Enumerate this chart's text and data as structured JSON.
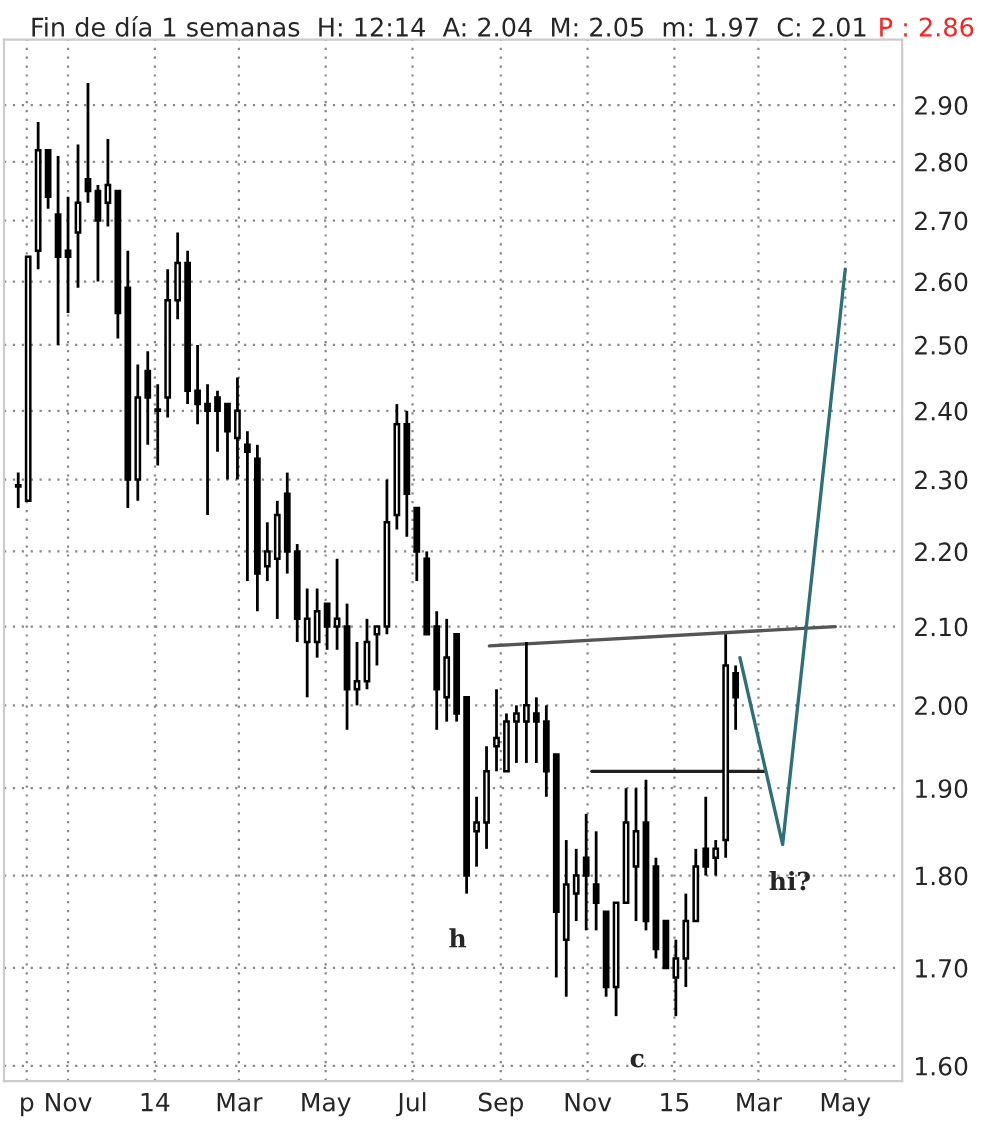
{
  "chart_data": {
    "type": "candlestick",
    "title": "Fin de día 1 semanas  H: 12:14  A: 2.04  M: 2.05  m: 1.97  C: 2.01",
    "subtitle": "P : 2.86",
    "x": [
      "2013-09-27",
      "2013-10-04",
      "2013-10-11",
      "2013-10-18",
      "2013-10-25",
      "2013-11-01",
      "2013-11-08",
      "2013-11-15",
      "2013-11-22",
      "2013-11-29",
      "2013-12-06",
      "2013-12-13",
      "2013-12-20",
      "2013-12-27",
      "2014-01-03",
      "2014-01-10",
      "2014-01-17",
      "2014-01-24",
      "2014-01-31",
      "2014-02-07",
      "2014-02-14",
      "2014-02-21",
      "2014-02-28",
      "2014-03-07",
      "2014-03-14",
      "2014-03-21",
      "2014-03-28",
      "2014-04-04",
      "2014-04-11",
      "2014-04-18",
      "2014-04-25",
      "2014-05-02",
      "2014-05-09",
      "2014-05-16",
      "2014-05-23",
      "2014-05-30",
      "2014-06-06",
      "2014-06-13",
      "2014-06-20",
      "2014-06-27",
      "2014-07-04",
      "2014-07-11",
      "2014-07-18",
      "2014-07-25",
      "2014-08-01",
      "2014-08-08",
      "2014-08-15",
      "2014-08-22",
      "2014-08-29",
      "2014-09-05",
      "2014-09-12",
      "2014-09-19",
      "2014-09-26",
      "2014-10-03",
      "2014-10-10",
      "2014-10-17",
      "2014-10-24",
      "2014-10-31",
      "2014-11-07",
      "2014-11-14",
      "2014-11-21",
      "2014-11-28",
      "2014-12-05",
      "2014-12-12",
      "2014-12-19",
      "2014-12-26",
      "2015-01-02",
      "2015-01-09",
      "2015-01-16",
      "2015-01-23",
      "2015-01-30",
      "2015-02-06",
      "2015-02-13"
    ],
    "ohlc": [
      [
        2.29,
        2.31,
        2.26,
        2.29
      ],
      [
        2.27,
        2.64,
        2.27,
        2.64
      ],
      [
        2.65,
        2.87,
        2.62,
        2.82
      ],
      [
        2.82,
        2.82,
        2.72,
        2.74
      ],
      [
        2.71,
        2.81,
        2.5,
        2.64
      ],
      [
        2.65,
        2.74,
        2.55,
        2.64
      ],
      [
        2.68,
        2.83,
        2.59,
        2.73
      ],
      [
        2.77,
        2.94,
        2.73,
        2.75
      ],
      [
        2.75,
        2.76,
        2.6,
        2.7
      ],
      [
        2.73,
        2.84,
        2.69,
        2.76
      ],
      [
        2.75,
        2.75,
        2.51,
        2.55
      ],
      [
        2.59,
        2.65,
        2.26,
        2.3
      ],
      [
        2.3,
        2.47,
        2.27,
        2.42
      ],
      [
        2.46,
        2.49,
        2.35,
        2.42
      ],
      [
        2.4,
        2.44,
        2.32,
        2.4
      ],
      [
        2.42,
        2.62,
        2.39,
        2.57
      ],
      [
        2.57,
        2.68,
        2.54,
        2.63
      ],
      [
        2.63,
        2.65,
        2.41,
        2.43
      ],
      [
        2.43,
        2.5,
        2.38,
        2.41
      ],
      [
        2.41,
        2.44,
        2.25,
        2.4
      ],
      [
        2.42,
        2.43,
        2.34,
        2.4
      ],
      [
        2.41,
        2.41,
        2.3,
        2.37
      ],
      [
        2.36,
        2.45,
        2.3,
        2.4
      ],
      [
        2.35,
        2.37,
        2.16,
        2.34
      ],
      [
        2.33,
        2.35,
        2.12,
        2.17
      ],
      [
        2.18,
        2.24,
        2.16,
        2.2
      ],
      [
        2.19,
        2.27,
        2.11,
        2.25
      ],
      [
        2.28,
        2.31,
        2.17,
        2.2
      ],
      [
        2.2,
        2.21,
        2.08,
        2.11
      ],
      [
        2.08,
        2.15,
        2.01,
        2.11
      ],
      [
        2.08,
        2.15,
        2.06,
        2.12
      ],
      [
        2.13,
        2.13,
        2.07,
        2.1
      ],
      [
        2.1,
        2.19,
        2.07,
        2.11
      ],
      [
        2.1,
        2.13,
        1.97,
        2.02
      ],
      [
        2.02,
        2.08,
        2.0,
        2.03
      ],
      [
        2.03,
        2.11,
        2.02,
        2.08
      ],
      [
        2.09,
        2.1,
        2.05,
        2.1
      ],
      [
        2.1,
        2.3,
        2.09,
        2.24
      ],
      [
        2.25,
        2.41,
        2.23,
        2.38
      ],
      [
        2.38,
        2.4,
        2.22,
        2.28
      ],
      [
        2.26,
        2.26,
        2.16,
        2.2
      ],
      [
        2.19,
        2.2,
        2.09,
        2.09
      ],
      [
        2.1,
        2.12,
        1.97,
        2.02
      ],
      [
        2.01,
        2.11,
        1.98,
        2.06
      ],
      [
        2.09,
        2.09,
        1.98,
        1.99
      ],
      [
        2.01,
        2.01,
        1.78,
        1.8
      ],
      [
        1.85,
        1.89,
        1.81,
        1.86
      ],
      [
        1.86,
        1.95,
        1.83,
        1.92
      ],
      [
        1.95,
        2.02,
        1.92,
        1.96
      ],
      [
        1.92,
        1.99,
        1.92,
        1.98
      ],
      [
        1.98,
        2.0,
        1.93,
        1.99
      ],
      [
        1.98,
        2.08,
        1.93,
        2.0
      ],
      [
        1.99,
        2.01,
        1.93,
        1.98
      ],
      [
        1.98,
        2.0,
        1.89,
        1.92
      ],
      [
        1.94,
        1.94,
        1.69,
        1.76
      ],
      [
        1.73,
        1.84,
        1.67,
        1.79
      ],
      [
        1.78,
        1.83,
        1.75,
        1.8
      ],
      [
        1.82,
        1.87,
        1.74,
        1.8
      ],
      [
        1.79,
        1.85,
        1.74,
        1.77
      ],
      [
        1.76,
        1.76,
        1.67,
        1.68
      ],
      [
        1.68,
        1.77,
        1.65,
        1.77
      ],
      [
        1.77,
        1.9,
        1.77,
        1.86
      ],
      [
        1.81,
        1.9,
        1.75,
        1.85
      ],
      [
        1.86,
        1.91,
        1.74,
        1.75
      ],
      [
        1.81,
        1.82,
        1.71,
        1.72
      ],
      [
        1.75,
        1.75,
        1.7,
        1.7
      ],
      [
        1.69,
        1.73,
        1.65,
        1.71
      ],
      [
        1.71,
        1.78,
        1.68,
        1.75
      ],
      [
        1.75,
        1.83,
        1.75,
        1.81
      ],
      [
        1.83,
        1.89,
        1.8,
        1.81
      ],
      [
        1.82,
        1.84,
        1.8,
        1.83
      ],
      [
        1.84,
        2.09,
        1.82,
        2.05
      ],
      [
        2.04,
        2.05,
        1.97,
        2.01
      ]
    ],
    "series": [
      {
        "type": "line",
        "color": "#555555",
        "x": [
          "2014-08-24",
          "2015-04-24"
        ],
        "values": [
          2.075,
          2.1
        ]
      },
      {
        "type": "line",
        "color": "#222222",
        "x": [
          "2014-11-04",
          "2015-03-06"
        ],
        "values": [
          1.92,
          1.92
        ]
      },
      {
        "type": "line",
        "color": "#2e6f78",
        "x": [
          "2015-02-16",
          "2015-03-18",
          "2015-05-01"
        ],
        "values": [
          2.06,
          1.835,
          2.62
        ]
      }
    ],
    "annotations": [
      "h",
      "c",
      "hi?"
    ],
    "log": true,
    "xlim": [
      "2013-09-17",
      "2015-06-10"
    ],
    "xticks": [
      {
        "value": "2013-10-03",
        "label": "p"
      },
      {
        "value": "2013-11-01",
        "label": "Nov"
      },
      {
        "value": "2014-01-01",
        "label": "14"
      },
      {
        "value": "2014-03-01",
        "label": "Mar"
      },
      {
        "value": "2014-05-01",
        "label": "May"
      },
      {
        "value": "2014-07-01",
        "label": "Jul"
      },
      {
        "value": "2014-09-01",
        "label": "Sep"
      },
      {
        "value": "2014-11-01",
        "label": "Nov"
      },
      {
        "value": "2015-01-01",
        "label": "15"
      },
      {
        "value": "2015-03-01",
        "label": "Mar"
      },
      {
        "value": "2015-05-01",
        "label": "May"
      }
    ],
    "ylim": [
      1.585,
      3.02
    ],
    "yticks": [
      {
        "value": 1.6,
        "label": "1.60"
      },
      {
        "value": 1.7,
        "label": "1.70"
      },
      {
        "value": 1.8,
        "label": "1.80"
      },
      {
        "value": 1.9,
        "label": "1.90"
      },
      {
        "value": 2.0,
        "label": "2.00"
      },
      {
        "value": 2.1,
        "label": "2.10"
      },
      {
        "value": 2.2,
        "label": "2.20"
      },
      {
        "value": 2.3,
        "label": "2.30"
      },
      {
        "value": 2.4,
        "label": "2.40"
      },
      {
        "value": 2.5,
        "label": "2.50"
      },
      {
        "value": 2.6,
        "label": "2.60"
      },
      {
        "value": 2.7,
        "label": "2.70"
      },
      {
        "value": 2.8,
        "label": "2.80"
      },
      {
        "value": 2.9,
        "label": "2.90"
      }
    ],
    "grid": true
  }
}
